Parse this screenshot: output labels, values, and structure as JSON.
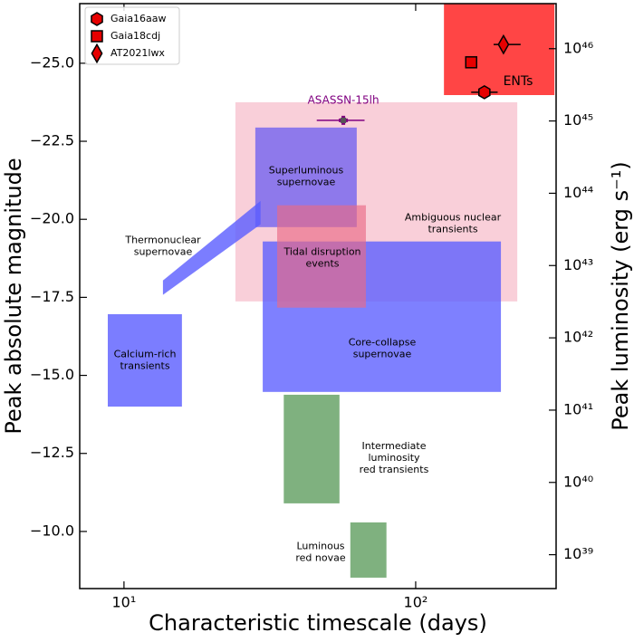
{
  "chart_data": {
    "type": "scatter",
    "xlabel": "Characteristic timescale (days)",
    "ylabel": "Peak absolute magnitude",
    "y2label": "Peak luminosity (erg s⁻¹)",
    "xscale": "log",
    "xlim": [
      7.05,
      303
    ],
    "xticks": [
      {
        "value": 10,
        "label": "10¹"
      },
      {
        "value": 100,
        "label": "10²"
      }
    ],
    "ylim": [
      -8.17,
      -26.91
    ],
    "yticks": [
      {
        "value": -10,
        "label": "−10.0"
      },
      {
        "value": -12.5,
        "label": "−12.5"
      },
      {
        "value": -15,
        "label": "−15.0"
      },
      {
        "value": -17.5,
        "label": "−17.5"
      },
      {
        "value": -20,
        "label": "−20.0"
      },
      {
        "value": -22.5,
        "label": "−22.5"
      },
      {
        "value": -25,
        "label": "−25.0"
      }
    ],
    "y2scale": "log",
    "y2lim": [
      3.4e+38,
      4.2e+46
    ],
    "y2ticks": [
      {
        "value": 1e+39,
        "label": "10³⁹"
      },
      {
        "value": 1e+40,
        "label": "10⁴⁰"
      },
      {
        "value": 1e+41,
        "label": "10⁴¹"
      },
      {
        "value": 1e+42,
        "label": "10⁴²"
      },
      {
        "value": 1e+43,
        "label": "10⁴³"
      },
      {
        "value": 1e+44,
        "label": "10⁴⁴"
      },
      {
        "value": 1e+45,
        "label": "10⁴⁵"
      },
      {
        "value": 1e+46,
        "label": "10⁴⁶"
      }
    ],
    "legend": "upper left",
    "regions": [
      {
        "name": "ENTs",
        "color": "#ff3b3b",
        "opacity": 0.95,
        "x": [
          125,
          299
        ],
        "y": [
          -23.98,
          -26.91
        ]
      },
      {
        "name": "Ambiguous nuclear\ntransients",
        "color": "#f4a7b9",
        "opacity": 0.55,
        "x": [
          24.1,
          223
        ],
        "y": [
          -17.37,
          -23.75
        ]
      },
      {
        "name": "Superluminous\nsupernovae",
        "color": "#6a5cf0",
        "opacity": 0.75,
        "x": [
          28.2,
          62.8
        ],
        "y": [
          -19.75,
          -22.94
        ]
      },
      {
        "name": "Core-collapse\nsupernovae",
        "color": "#5a5cff",
        "opacity": 0.78,
        "x": [
          29.9,
          196
        ],
        "y": [
          -14.47,
          -19.29
        ]
      },
      {
        "name": "Tidal disruption\nevents",
        "color": "#ea6a86",
        "opacity": 0.65,
        "x": [
          33.5,
          67.5
        ],
        "y": [
          -17.17,
          -20.45
        ]
      },
      {
        "name": "Calcium-rich\ntransients",
        "color": "#5a5cff",
        "opacity": 0.8,
        "x": [
          8.8,
          15.8
        ],
        "y": [
          -14.0,
          -16.96
        ]
      },
      {
        "name": "Intermediate\nluminosity\nred transients",
        "color": "#5f9e5f",
        "opacity": 0.8,
        "x": [
          35.3,
          54.8
        ],
        "y": [
          -10.9,
          -14.38
        ]
      },
      {
        "name": "Luminous\nred novae",
        "color": "#5f9e5f",
        "opacity": 0.8,
        "x": [
          59.7,
          79.4
        ],
        "y": [
          -8.52,
          -10.29
        ]
      },
      {
        "name": "Thermonuclear\nsupernovae",
        "color": "#5a5cff",
        "opacity": 0.8,
        "shape": "polygon",
        "x": [
          13.6,
          29.4,
          29.4,
          13.6
        ],
        "y": [
          -18.04,
          -20.59,
          -19.84,
          -17.58
        ]
      }
    ],
    "series": [
      {
        "name": "Gaia16aaw",
        "marker": "hexagon",
        "color": "#e60000",
        "x": 172,
        "y": -24.07,
        "xmin": 155,
        "xmax": 191,
        "legend": true
      },
      {
        "name": "Gaia18cdj",
        "marker": "square",
        "color": "#e60000",
        "x": 155,
        "y": -25.03,
        "legend": true
      },
      {
        "name": "AT2021lwx",
        "marker": "diamond",
        "color": "#e60000",
        "x": 200,
        "y": -25.6,
        "xmin": 185,
        "xmax": 229,
        "legend": true
      },
      {
        "name": "ASASSN-15lh",
        "marker": "plus",
        "color": "#800080",
        "x": 56.5,
        "y": -23.17,
        "xmin": 45.8,
        "xmax": 66.8,
        "legend": false
      }
    ]
  }
}
